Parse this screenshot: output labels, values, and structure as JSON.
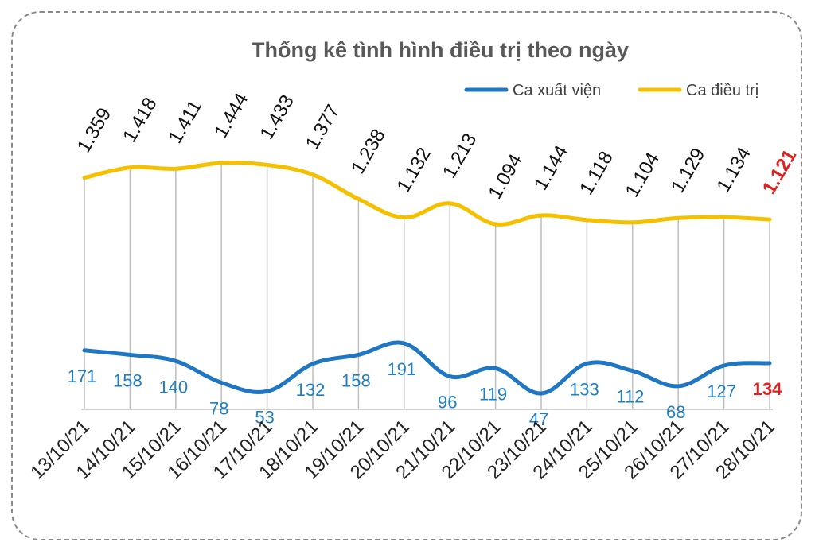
{
  "chart_data": {
    "type": "line",
    "title": "Thống kê tình hình điều trị theo ngày",
    "categories": [
      "13/10/21",
      "14/10/21",
      "15/10/21",
      "16/10/21",
      "17/10/21",
      "18/10/21",
      "19/10/21",
      "20/10/21",
      "21/10/21",
      "22/10/21",
      "23/10/21",
      "24/10/21",
      "25/10/21",
      "26/10/21",
      "27/10/21",
      "28/10/21"
    ],
    "series": [
      {
        "name": "Ca xuất viện",
        "color": "#1f77c4",
        "values": [
          171,
          158,
          140,
          78,
          53,
          132,
          158,
          191,
          96,
          119,
          47,
          133,
          112,
          68,
          127,
          134
        ],
        "labels": [
          "171",
          "158",
          "140",
          "78",
          "53",
          "132",
          "158",
          "191",
          "96",
          "119",
          "47",
          "133",
          "112",
          "68",
          "127",
          "134"
        ]
      },
      {
        "name": "Ca điều trị",
        "color": "#f5c000",
        "values": [
          1359,
          1418,
          1411,
          1444,
          1433,
          1377,
          1238,
          1132,
          1213,
          1094,
          1144,
          1118,
          1104,
          1129,
          1134,
          1121
        ],
        "labels": [
          "1.359",
          "1.418",
          "1.411",
          "1.444",
          "1.433",
          "1.377",
          "1.238",
          "1.132",
          "1.213",
          "1.094",
          "1.144",
          "1.118",
          "1.104",
          "1.129",
          "1.134",
          "1.121"
        ]
      }
    ],
    "highlight_color": "#e0201e",
    "highlight_index": 15,
    "legend": "top-right",
    "grid": "vertical"
  }
}
